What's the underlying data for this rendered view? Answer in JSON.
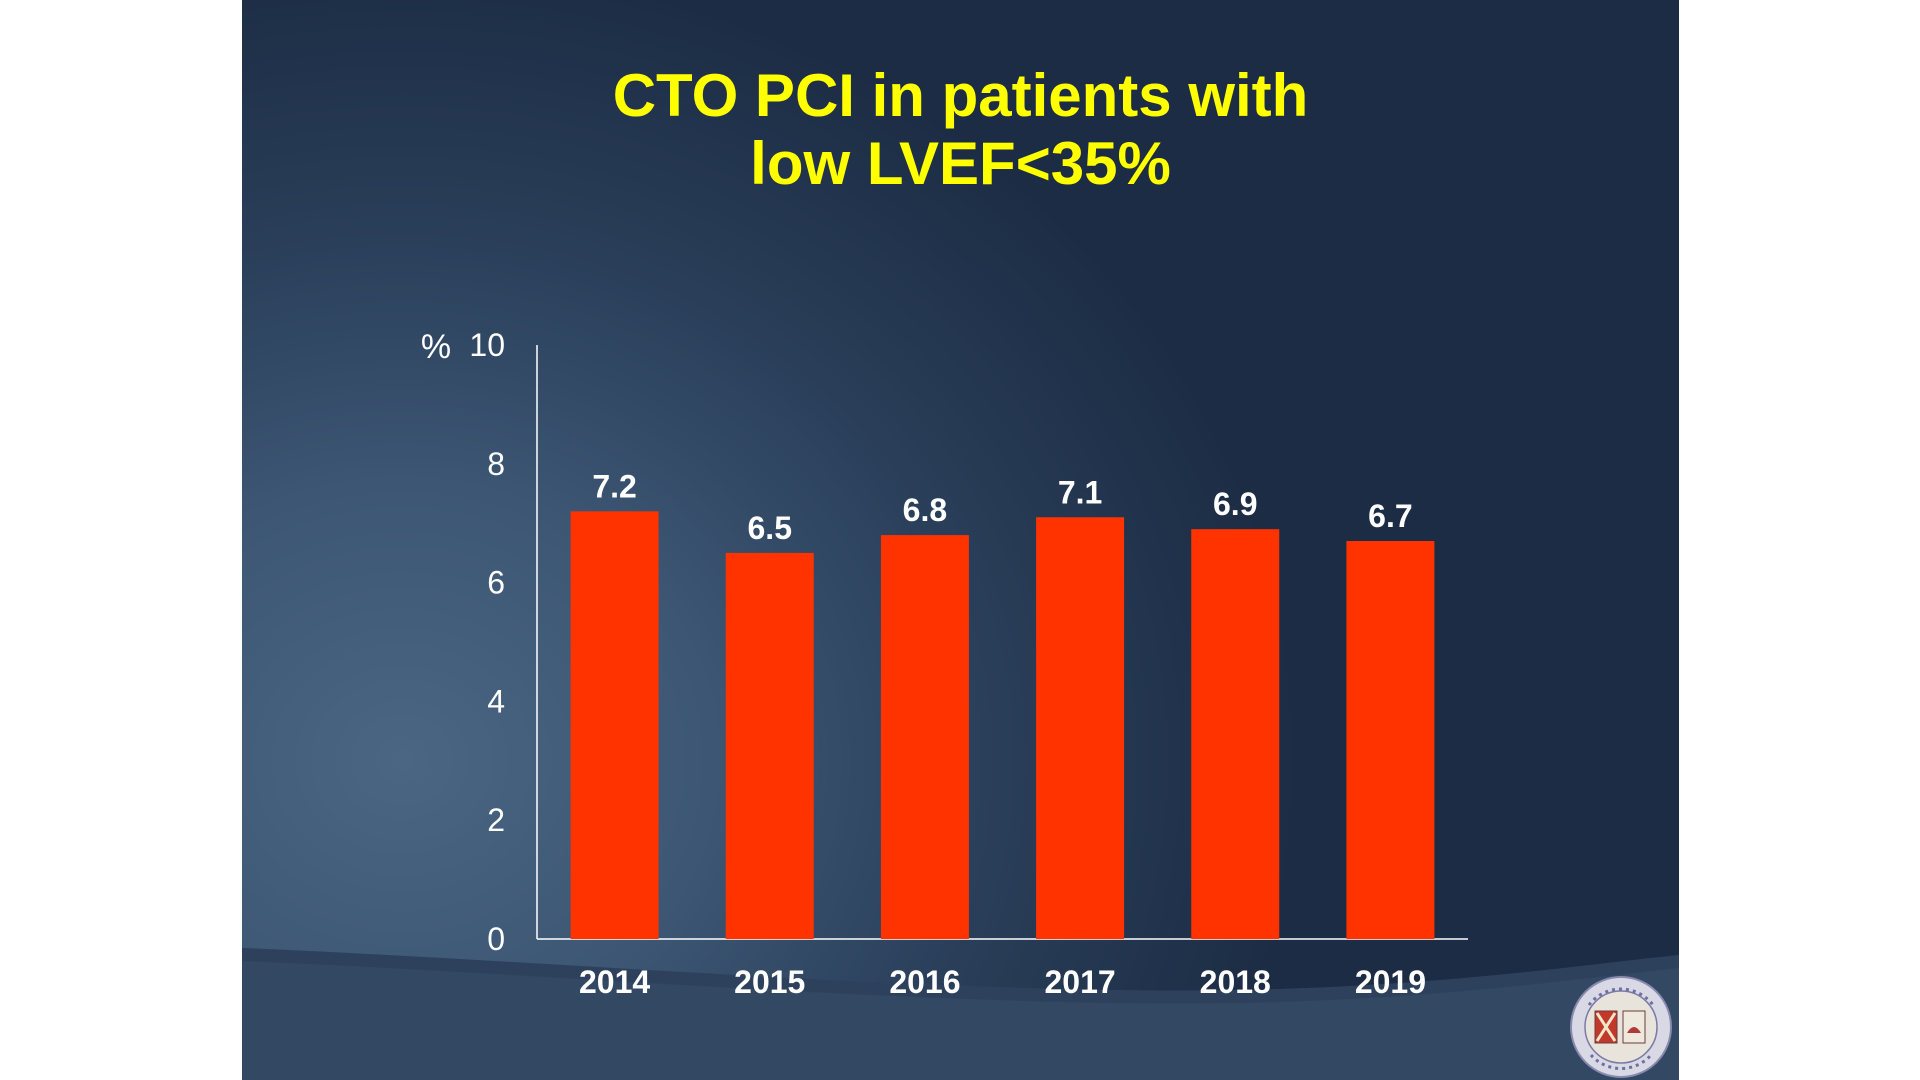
{
  "slide": {
    "title_lines": [
      "CTO PCI in patients with",
      "low LVEF<35%"
    ]
  },
  "colors": {
    "title": "#ffff00",
    "bar": "#ff3300",
    "text": "#ffffff",
    "axis": "#ffffff"
  },
  "chart_data": {
    "type": "bar",
    "title": "CTO PCI in patients with low LVEF<35%",
    "categories": [
      "2014",
      "2015",
      "2016",
      "2017",
      "2018",
      "2019"
    ],
    "values": [
      7.2,
      6.5,
      6.8,
      7.1,
      6.9,
      6.7
    ],
    "data_labels": [
      "7.2",
      "6.5",
      "6.8",
      "7.1",
      "6.9",
      "6.7"
    ],
    "ylabel": "%",
    "xlabel": "",
    "ylim": [
      0,
      10
    ],
    "yticks": [
      0,
      2,
      4,
      6,
      8,
      10
    ],
    "grid": false,
    "legend": "none"
  },
  "seal": {
    "name": "university-seal"
  }
}
